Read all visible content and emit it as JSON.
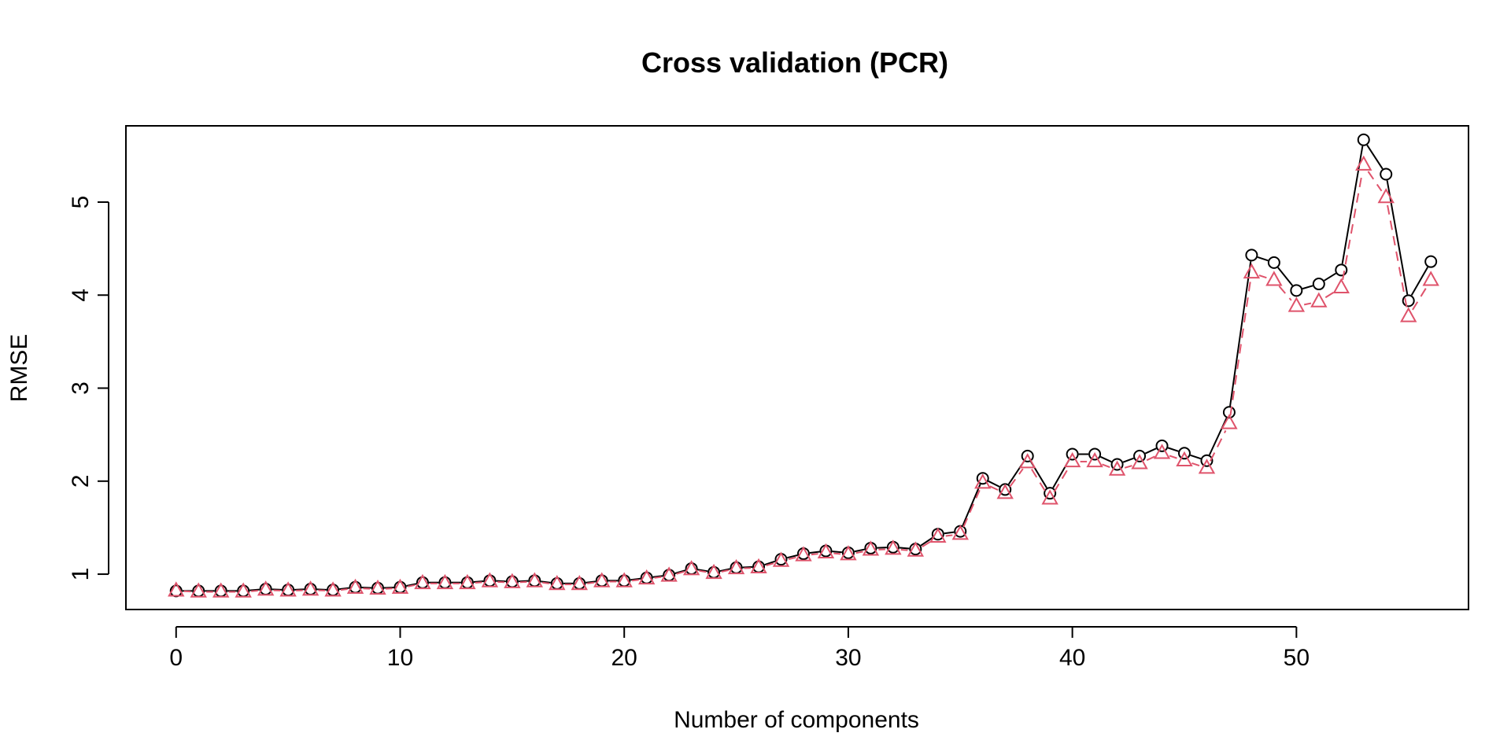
{
  "chart_data": {
    "type": "line",
    "title": "Cross validation (PCR)",
    "xlabel": "Number of components",
    "ylabel": "RMSE",
    "xlim": [
      -2.24,
      57.68
    ],
    "ylim": [
      0.62,
      5.82
    ],
    "x_ticks": [
      0,
      10,
      20,
      30,
      40,
      50
    ],
    "y_ticks": [
      1,
      2,
      3,
      4,
      5
    ],
    "x": [
      0,
      1,
      2,
      3,
      4,
      5,
      6,
      7,
      8,
      9,
      10,
      11,
      12,
      13,
      14,
      15,
      16,
      17,
      18,
      19,
      20,
      21,
      22,
      23,
      24,
      25,
      26,
      27,
      28,
      29,
      30,
      31,
      32,
      33,
      34,
      35,
      36,
      37,
      38,
      39,
      40,
      41,
      42,
      43,
      44,
      45,
      46,
      47,
      48,
      49,
      50,
      51,
      52,
      53,
      54,
      55,
      56
    ],
    "series": [
      {
        "color": "#000000",
        "line_style": "solid",
        "marker": "circle",
        "values": [
          0.82,
          0.82,
          0.82,
          0.82,
          0.84,
          0.83,
          0.84,
          0.83,
          0.86,
          0.85,
          0.86,
          0.91,
          0.91,
          0.91,
          0.93,
          0.92,
          0.93,
          0.9,
          0.9,
          0.93,
          0.93,
          0.96,
          0.99,
          1.06,
          1.02,
          1.07,
          1.08,
          1.16,
          1.22,
          1.25,
          1.23,
          1.28,
          1.29,
          1.27,
          1.43,
          1.46,
          2.03,
          1.91,
          2.27,
          1.87,
          2.29,
          2.29,
          2.18,
          2.27,
          2.38,
          2.3,
          2.22,
          2.74,
          4.43,
          4.35,
          4.05,
          4.12,
          4.27,
          5.67,
          5.3,
          3.94,
          4.36
        ]
      },
      {
        "color": "#DF536B",
        "line_style": "dashed",
        "marker": "triangle",
        "values": [
          0.82,
          0.81,
          0.81,
          0.81,
          0.83,
          0.82,
          0.83,
          0.82,
          0.85,
          0.84,
          0.85,
          0.9,
          0.9,
          0.9,
          0.92,
          0.91,
          0.92,
          0.89,
          0.89,
          0.92,
          0.92,
          0.95,
          0.98,
          1.05,
          1.01,
          1.06,
          1.07,
          1.14,
          1.2,
          1.23,
          1.21,
          1.26,
          1.27,
          1.25,
          1.4,
          1.43,
          1.98,
          1.87,
          2.2,
          1.81,
          2.21,
          2.21,
          2.12,
          2.19,
          2.3,
          2.22,
          2.14,
          2.62,
          4.24,
          4.16,
          3.88,
          3.93,
          4.08,
          5.4,
          5.05,
          3.77,
          4.16
        ]
      }
    ],
    "grid": false,
    "legend": "none"
  }
}
